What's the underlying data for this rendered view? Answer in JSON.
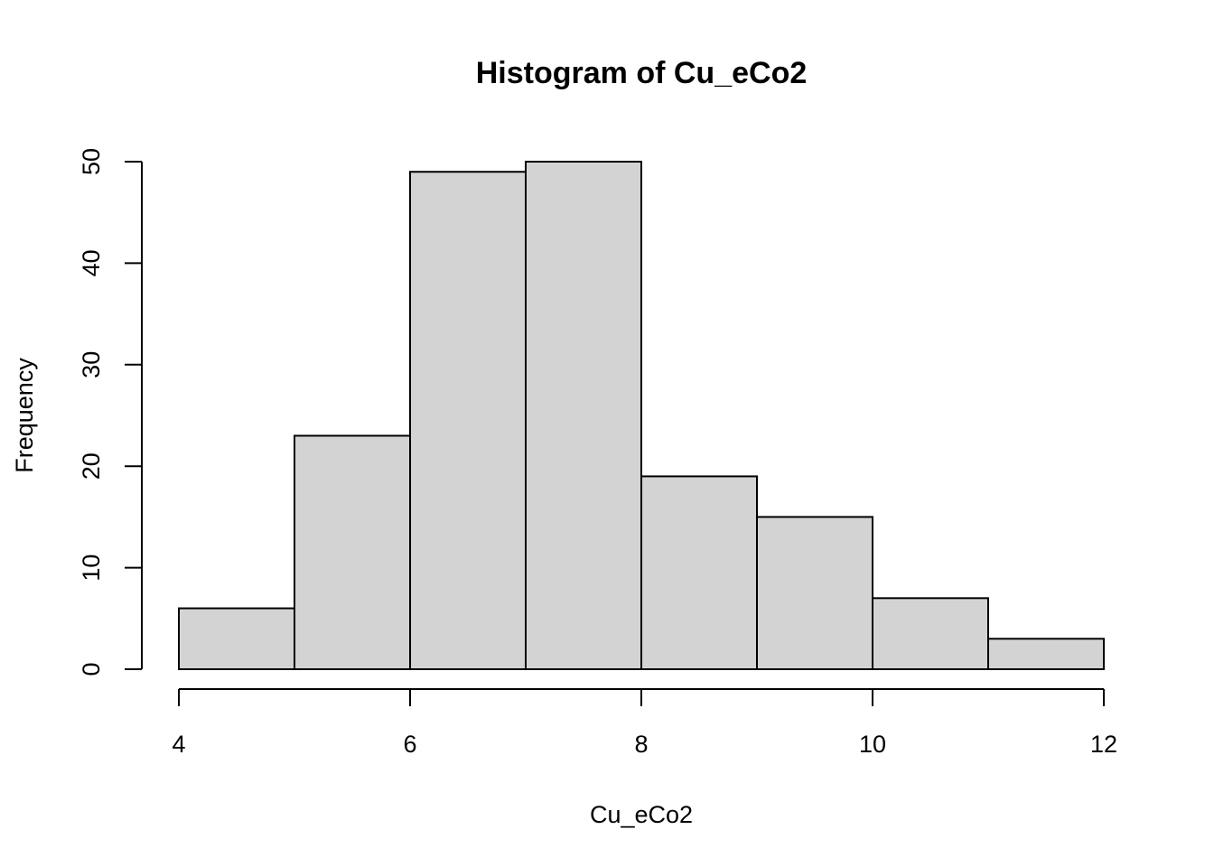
{
  "chart_data": {
    "type": "bar",
    "title": "Histogram of Cu_eCo2",
    "xlabel": "Cu_eCo2",
    "ylabel": "Frequency",
    "bins": [
      {
        "start": 4,
        "end": 5,
        "count": 6
      },
      {
        "start": 5,
        "end": 6,
        "count": 23
      },
      {
        "start": 6,
        "end": 7,
        "count": 49
      },
      {
        "start": 7,
        "end": 8,
        "count": 50
      },
      {
        "start": 8,
        "end": 9,
        "count": 19
      },
      {
        "start": 9,
        "end": 10,
        "count": 15
      },
      {
        "start": 10,
        "end": 11,
        "count": 7
      },
      {
        "start": 11,
        "end": 12,
        "count": 3
      }
    ],
    "xlim": [
      4,
      12
    ],
    "ylim": [
      0,
      50
    ],
    "x_ticks": [
      4,
      6,
      8,
      10,
      12
    ],
    "y_ticks": [
      0,
      10,
      20,
      30,
      40,
      50
    ],
    "grid": false,
    "bar_color": "#d3d3d3",
    "edge_color": "#000000"
  }
}
